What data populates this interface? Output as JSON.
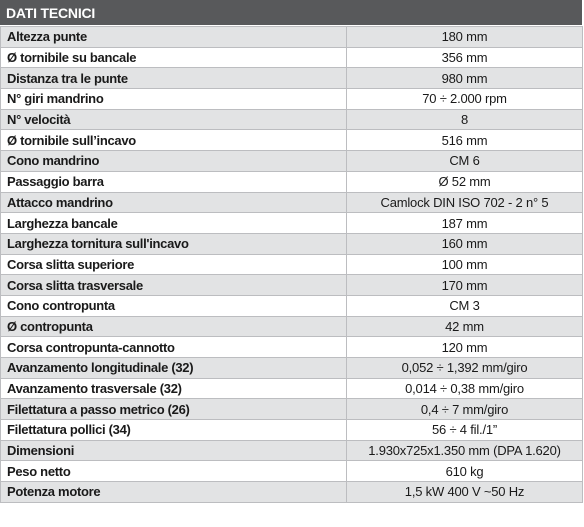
{
  "title": "DATI TECNICI",
  "rows": [
    {
      "label": "Altezza punte",
      "value": "180 mm"
    },
    {
      "label": "Ø tornibile su bancale",
      "value": "356 mm"
    },
    {
      "label": "Distanza tra le punte",
      "value": "980 mm"
    },
    {
      "label": "N° giri mandrino",
      "value": "70 ÷ 2.000 rpm"
    },
    {
      "label": "N° velocità",
      "value": "8"
    },
    {
      "label": "Ø tornibile sull’incavo",
      "value": "516 mm"
    },
    {
      "label": "Cono mandrino",
      "value": "CM 6"
    },
    {
      "label": "Passaggio barra",
      "value": "Ø 52 mm"
    },
    {
      "label": "Attacco mandrino",
      "value": "Camlock DIN ISO 702 - 2 n° 5"
    },
    {
      "label": "Larghezza bancale",
      "value": "187 mm"
    },
    {
      "label": "Larghezza tornitura sull'incavo",
      "value": "160 mm"
    },
    {
      "label": "Corsa slitta superiore",
      "value": "100 mm"
    },
    {
      "label": "Corsa slitta trasversale",
      "value": "170 mm"
    },
    {
      "label": "Cono contropunta",
      "value": "CM 3"
    },
    {
      "label": "Ø contropunta",
      "value": "42 mm"
    },
    {
      "label": "Corsa contropunta-cannotto",
      "value": "120 mm"
    },
    {
      "label": "Avanzamento longitudinale (32)",
      "value": "0,052 ÷ 1,392 mm/giro"
    },
    {
      "label": "Avanzamento trasversale (32)",
      "value": "0,014 ÷ 0,38 mm/giro"
    },
    {
      "label": "Filettatura a passo metrico (26)",
      "value": "0,4 ÷ 7 mm/giro"
    },
    {
      "label": "Filettatura pollici (34)",
      "value": "56 ÷ 4 fil./1”"
    },
    {
      "label": "Dimensioni",
      "value": "1.930x725x1.350 mm (DPA 1.620)"
    },
    {
      "label": "Peso netto",
      "value": "610 kg"
    },
    {
      "label": "Potenza motore",
      "value": "1,5 kW  400 V  ~50 Hz"
    }
  ]
}
